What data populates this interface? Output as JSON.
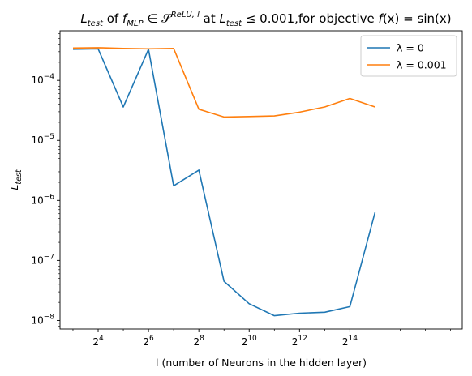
{
  "chart_data": {
    "type": "line",
    "title": {
      "prefix_var": "L",
      "prefix_sub": "test",
      "of": " of ",
      "f": "f",
      "f_sub": "MLP",
      "in": " ∈ ",
      "space": "𝒮",
      "space_sup": "ReLU, l",
      "at": " at ",
      "cond_var": "L",
      "cond_sub": "test",
      "cond_rest": " ≤ 0.001,for objective ",
      "fx": "f",
      "fx_rest": "(x) = sin(x)"
    },
    "xlabel": "l (number of Neurons in the hidden layer)",
    "ylabel": {
      "var": "L",
      "sub": "test"
    },
    "x_scale": "log2",
    "y_scale": "log10",
    "xlim": [
      5.6,
      362000
    ],
    "ylim": [
      7.2e-09,
      0.00067
    ],
    "x_ticks": [
      {
        "value": 16,
        "base": "2",
        "exp": "4"
      },
      {
        "value": 64,
        "base": "2",
        "exp": "6"
      },
      {
        "value": 256,
        "base": "2",
        "exp": "8"
      },
      {
        "value": 1024,
        "base": "2",
        "exp": "10"
      },
      {
        "value": 4096,
        "base": "2",
        "exp": "12"
      },
      {
        "value": 16384,
        "base": "2",
        "exp": "14"
      }
    ],
    "y_ticks": [
      {
        "value": 1e-08,
        "base": "10",
        "exp": "−8"
      },
      {
        "value": 1e-07,
        "base": "10",
        "exp": "−7"
      },
      {
        "value": 1e-06,
        "base": "10",
        "exp": "−6"
      },
      {
        "value": 1e-05,
        "base": "10",
        "exp": "−5"
      },
      {
        "value": 0.0001,
        "base": "10",
        "exp": "−4"
      }
    ],
    "x": [
      8,
      16,
      32,
      64,
      128,
      256,
      512,
      1024,
      2048,
      4096,
      8192,
      16384,
      32768
    ],
    "series": [
      {
        "name": "λ = 0",
        "color": "#1f77b4",
        "values": [
          0.00033,
          0.000335,
          3.6e-05,
          0.00033,
          1.75e-06,
          3.2e-06,
          4.5e-08,
          1.9e-08,
          1.2e-08,
          1.32e-08,
          1.37e-08,
          1.7e-08,
          6.3e-07
        ]
      },
      {
        "name": "λ = 0.001",
        "color": "#ff7f0e",
        "values": [
          0.000345,
          0.00035,
          0.00034,
          0.000335,
          0.00034,
          3.3e-05,
          2.45e-05,
          2.5e-05,
          2.55e-05,
          2.95e-05,
          3.6e-05,
          5e-05,
          3.6e-05
        ]
      }
    ],
    "legend_position": "top-right",
    "grid": false
  }
}
